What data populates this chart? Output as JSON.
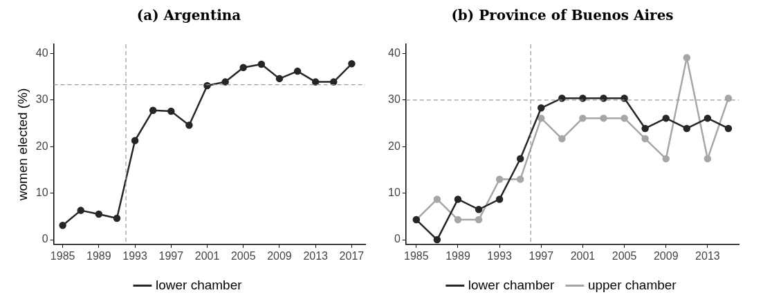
{
  "chart_data": [
    {
      "type": "line",
      "title": "(a) Argentina",
      "ylabel": "women elected (%)",
      "x": [
        1985,
        1987,
        1989,
        1991,
        1993,
        1995,
        1997,
        1999,
        2001,
        2003,
        2005,
        2007,
        2009,
        2011,
        2013,
        2015,
        2017
      ],
      "series": [
        {
          "name": "lower chamber",
          "color": "#262626",
          "values": [
            3.1,
            6.3,
            5.5,
            4.6,
            21.3,
            27.8,
            27.6,
            24.6,
            33.1,
            33.9,
            37.0,
            37.7,
            34.6,
            36.2,
            33.9,
            33.9,
            37.8
          ]
        }
      ],
      "xlim": [
        1984,
        2018.5
      ],
      "xticks": [
        1985,
        1989,
        1993,
        1997,
        2001,
        2005,
        2009,
        2013,
        2017
      ],
      "ylim": [
        -1,
        42
      ],
      "yticks": [
        0,
        10,
        20,
        30,
        40
      ],
      "ref_lines": [
        {
          "axis": "x",
          "value": 1992,
          "color": "#999999",
          "line_style": "dashed"
        },
        {
          "axis": "y",
          "value": 33.3,
          "color": "#999999",
          "line_style": "dashed"
        }
      ],
      "grid": false,
      "legend": "bottom",
      "marker": "circle",
      "line_style": "solid"
    },
    {
      "type": "line",
      "title": "(b) Province of Buenos Aires",
      "x": [
        1985,
        1987,
        1989,
        1991,
        1993,
        1995,
        1997,
        1999,
        2001,
        2003,
        2005,
        2007,
        2009,
        2011,
        2013,
        2015
      ],
      "series": [
        {
          "name": "lower chamber",
          "color": "#262626",
          "values": [
            4.3,
            0,
            8.7,
            6.5,
            8.7,
            17.4,
            28.3,
            30.4,
            30.4,
            30.4,
            30.4,
            23.9,
            26.1,
            23.9,
            26.1,
            23.9
          ]
        },
        {
          "name": "upper chamber",
          "color": "#a6a6a6",
          "values": [
            4.3,
            8.7,
            4.3,
            4.3,
            13.0,
            13.0,
            26.1,
            21.7,
            26.1,
            26.1,
            26.1,
            21.7,
            17.4,
            39.1,
            17.4,
            30.4
          ]
        }
      ],
      "xlim": [
        1984,
        2016
      ],
      "xticks": [
        1985,
        1989,
        1993,
        1997,
        2001,
        2005,
        2009,
        2013
      ],
      "ylim": [
        -1,
        42
      ],
      "yticks": [
        0,
        10,
        20,
        30,
        40
      ],
      "ref_lines": [
        {
          "axis": "x",
          "value": 1996,
          "color": "#999999",
          "line_style": "dashed"
        },
        {
          "axis": "y",
          "value": 30,
          "color": "#999999",
          "line_style": "dashed"
        }
      ],
      "grid": false,
      "legend": "bottom",
      "marker": "circle",
      "line_style": "solid"
    }
  ]
}
